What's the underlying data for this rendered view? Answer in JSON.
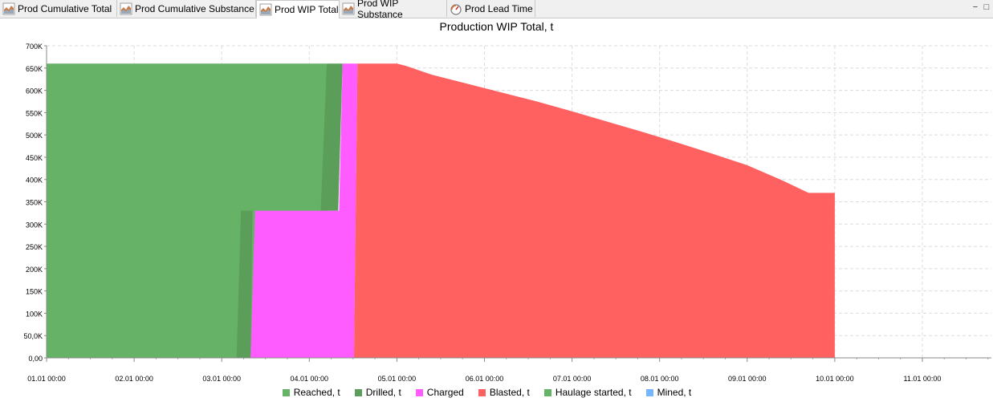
{
  "tabs": [
    {
      "label": "Prod Cumulative Total",
      "icon": "area-chart-icon",
      "active": false
    },
    {
      "label": "Prod Cumulative Substance",
      "icon": "area-chart-icon",
      "active": false
    },
    {
      "label": "Prod WIP Total",
      "icon": "area-chart-icon",
      "active": true
    },
    {
      "label": "Prod WIP Substance",
      "icon": "area-chart-icon",
      "active": false
    },
    {
      "label": "Prod Lead Time",
      "icon": "gauge-icon",
      "active": false
    }
  ],
  "window_controls": {
    "minimize": "−",
    "restore": "□"
  },
  "chart_data": {
    "type": "area",
    "title": "Production WIP Total, t",
    "xlabel": "",
    "ylabel": "",
    "ylim": [
      0,
      700000
    ],
    "xlim_days": [
      0,
      10.9
    ],
    "y_ticks": [
      "0,00",
      "50,0K",
      "100K",
      "150K",
      "200K",
      "250K",
      "300K",
      "350K",
      "400K",
      "450K",
      "500K",
      "550K",
      "600K",
      "650K",
      "700K"
    ],
    "x_ticks": [
      "01.01 00:00",
      "02.01 00:00",
      "03.01 00:00",
      "04.01 00:00",
      "05.01 00:00",
      "06.01 00:00",
      "07.01 00:00",
      "08.01 00:00",
      "09.01 00:00",
      "10.01 00:00",
      "11.01 00:00"
    ],
    "grid": true,
    "legend_position": "bottom",
    "series": [
      {
        "name": "Reached, t",
        "color": "#66b266",
        "points": [
          [
            0,
            660000
          ],
          [
            3.2,
            660000
          ],
          [
            3.2,
            0
          ],
          [
            2.17,
            0
          ],
          [
            0,
            0
          ]
        ]
      },
      {
        "name": "Drilled, t",
        "color": "#5a9e5a",
        "points": [
          [
            2.17,
            0
          ],
          [
            2.22,
            330000
          ],
          [
            3.13,
            330000
          ],
          [
            3.2,
            660000
          ],
          [
            3.38,
            660000
          ],
          [
            3.33,
            330000
          ],
          [
            2.35,
            330000
          ],
          [
            2.33,
            0
          ]
        ]
      },
      {
        "name": "Charged",
        "color": "#ff5cff",
        "points": [
          [
            2.33,
            0
          ],
          [
            2.38,
            330000
          ],
          [
            3.34,
            330000
          ],
          [
            3.38,
            660000
          ],
          [
            3.55,
            660000
          ],
          [
            3.51,
            0
          ]
        ]
      },
      {
        "name": "Blasted, t",
        "color": "#ff6161",
        "points": [
          [
            3.51,
            0
          ],
          [
            3.55,
            660000
          ],
          [
            4.0,
            660000
          ],
          [
            4.1,
            655000
          ],
          [
            4.4,
            635000
          ],
          [
            4.8,
            615000
          ],
          [
            5.2,
            595000
          ],
          [
            5.6,
            575000
          ],
          [
            6.0,
            553000
          ],
          [
            6.4,
            530000
          ],
          [
            6.8,
            507000
          ],
          [
            7.2,
            483000
          ],
          [
            7.6,
            458000
          ],
          [
            8.0,
            432000
          ],
          [
            8.4,
            398000
          ],
          [
            8.7,
            370000
          ],
          [
            9.0,
            370000
          ],
          [
            9.0,
            0
          ]
        ]
      },
      {
        "name": "Haulage started, t",
        "color": "#66b266",
        "points": []
      },
      {
        "name": "Mined, t",
        "color": "#75b6ff",
        "points": []
      }
    ]
  }
}
